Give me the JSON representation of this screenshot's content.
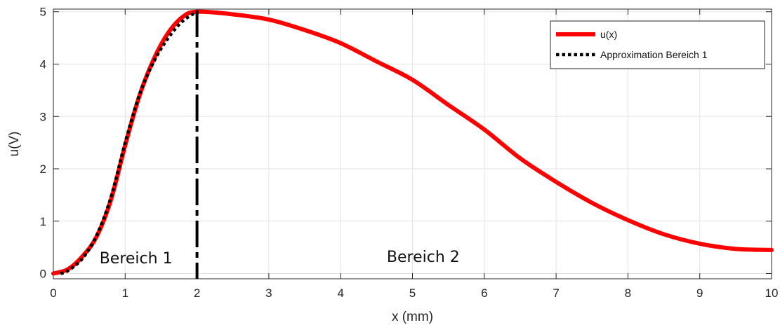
{
  "chart_data": {
    "type": "line",
    "xlabel": "x (mm)",
    "ylabel": "u(V)",
    "xlim": [
      0,
      10
    ],
    "ylim": [
      -0.1,
      5.05
    ],
    "x_ticks": [
      0,
      1,
      2,
      3,
      4,
      5,
      6,
      7,
      8,
      9,
      10
    ],
    "y_ticks": [
      0,
      1,
      2,
      3,
      4,
      5
    ],
    "grid": true,
    "legend_position": "top-right",
    "series": [
      {
        "name": "u(x)",
        "color": "#ff0000",
        "style": "solid",
        "x": [
          0,
          0.2,
          0.4,
          0.6,
          0.8,
          1.0,
          1.2,
          1.4,
          1.6,
          1.8,
          2.0,
          2.5,
          3.0,
          3.5,
          4.0,
          4.5,
          5.0,
          5.5,
          6.0,
          6.5,
          7.0,
          7.5,
          8.0,
          8.5,
          9.0,
          9.5,
          10.0
        ],
        "y": [
          0.0,
          0.08,
          0.32,
          0.7,
          1.4,
          2.45,
          3.4,
          4.1,
          4.6,
          4.9,
          5.0,
          4.95,
          4.85,
          4.65,
          4.4,
          4.05,
          3.7,
          3.22,
          2.75,
          2.2,
          1.75,
          1.35,
          1.02,
          0.75,
          0.57,
          0.47,
          0.45
        ]
      },
      {
        "name": "Approximation Bereich 1",
        "color": "#000000",
        "style": "dotted",
        "x": [
          0.1,
          0.2,
          0.4,
          0.6,
          0.8,
          1.0,
          1.2,
          1.4,
          1.6,
          1.8,
          2.0
        ],
        "y": [
          0.0,
          0.05,
          0.28,
          0.72,
          1.45,
          2.5,
          3.42,
          4.05,
          4.5,
          4.82,
          5.0
        ]
      }
    ],
    "vertical_line": {
      "x": 2,
      "color": "#000000",
      "style": "dashed"
    },
    "annotations": [
      {
        "text": "Bereich 1",
        "x": 1.15,
        "y": 0.3
      },
      {
        "text": "Bereich 2",
        "x": 5.15,
        "y": 0.33
      }
    ]
  }
}
